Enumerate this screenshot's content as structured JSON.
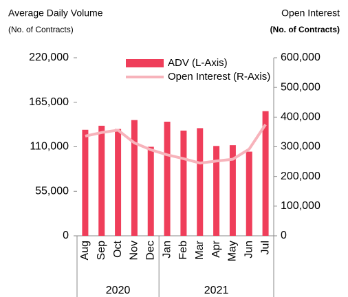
{
  "chart_data": {
    "type": "bar",
    "title": "Average Daily Volume",
    "subtitle": "(No. of Contracts)",
    "y2_title": "Open Interest",
    "y2_subtitle": "(No. of Contracts)",
    "categories": [
      "Aug",
      "Sep",
      "Oct",
      "Nov",
      "Dec",
      "Jan",
      "Feb",
      "Mar",
      "Apr",
      "May",
      "Jun",
      "Jul"
    ],
    "groups": [
      {
        "label": "2020",
        "count": 5
      },
      {
        "label": "2021",
        "count": 7
      }
    ],
    "series": [
      {
        "name": "ADV (L-Axis)",
        "type": "bar",
        "color": "#ef3e5a",
        "values": [
          131000,
          136000,
          132000,
          143000,
          110000,
          141000,
          130000,
          133000,
          111000,
          112000,
          104000,
          154000
        ]
      },
      {
        "name": "Open Interest (R-Axis)",
        "type": "line",
        "axis": "y2",
        "color": "#f7b3bb",
        "values": [
          336000,
          348000,
          356000,
          313000,
          290000,
          273000,
          260000,
          245000,
          252000,
          258000,
          292000,
          375000
        ]
      }
    ],
    "ylim": [
      0,
      220000
    ],
    "yticks": [
      0,
      {
        "value": 55000,
        "label": "55,000"
      },
      {
        "value": 110000,
        "label": "110,000"
      },
      {
        "value": 165000,
        "label": "165,000"
      },
      {
        "value": 220000,
        "label": "220,000"
      }
    ],
    "y2lim": [
      0,
      600000
    ],
    "y2ticks": [
      0,
      {
        "value": 100000,
        "label": "100,000"
      },
      {
        "value": 200000,
        "label": "200,000"
      },
      {
        "value": 300000,
        "label": "300,000"
      },
      {
        "value": 400000,
        "label": "400,000"
      },
      {
        "value": 500000,
        "label": "500,000"
      },
      {
        "value": 600000,
        "label": "600,000"
      }
    ],
    "grid": false,
    "legend": "top"
  }
}
